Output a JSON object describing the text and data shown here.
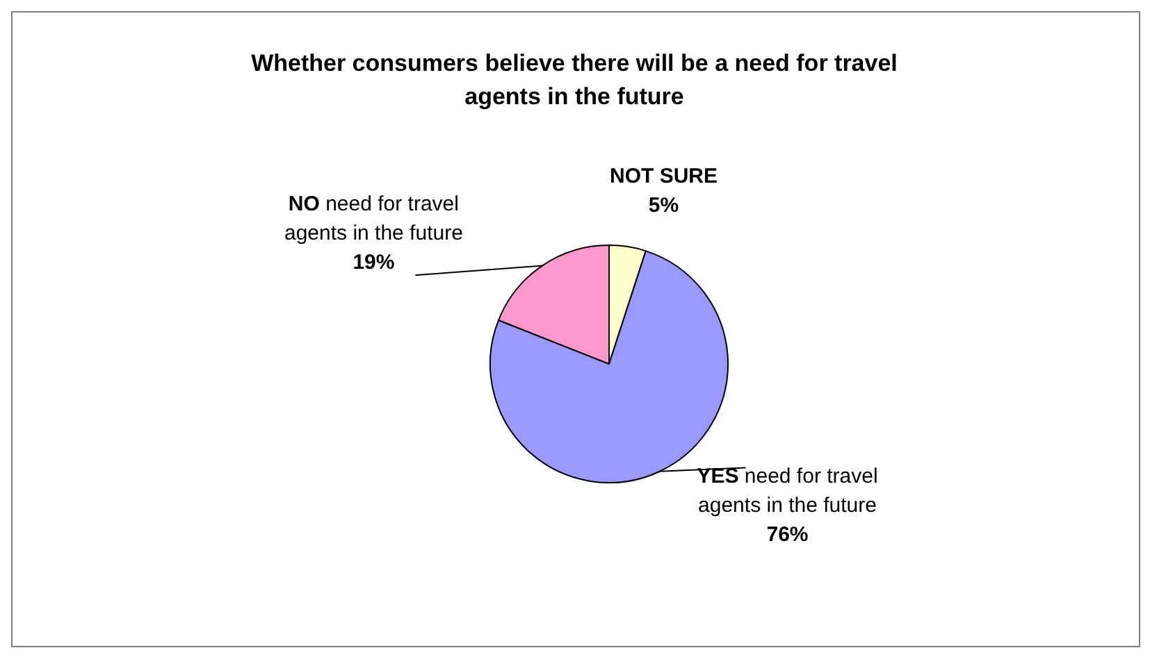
{
  "chart_data": {
    "type": "pie",
    "title": "Whether consumers believe there will be a need for travel agents in the future",
    "categories": [
      "NOT SURE",
      "YES need for travel agents in the future",
      "NO need for travel agents in the future"
    ],
    "values": [
      5,
      76,
      19
    ],
    "colors": [
      "#ffffcc",
      "#9999ff",
      "#ff99cc"
    ],
    "value_labels": [
      "5%",
      "76%",
      "19%"
    ],
    "legend": false
  }
}
